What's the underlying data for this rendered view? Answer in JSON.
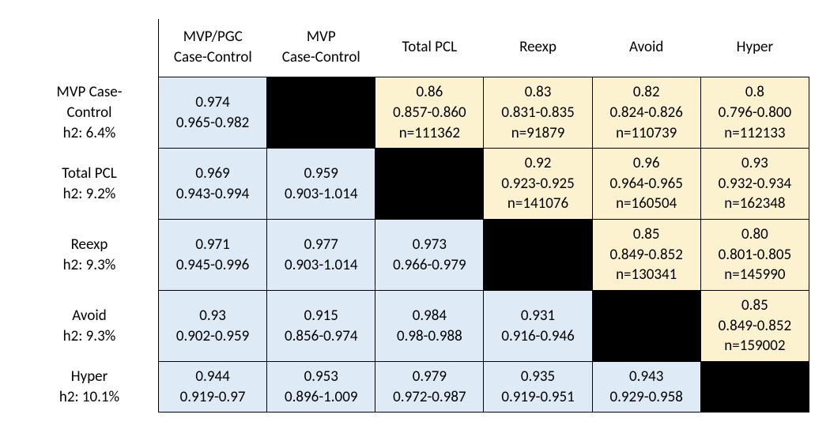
{
  "colors": {
    "lower_bg": "#deeaf6",
    "upper_bg": "#fdf2d0",
    "diag_bg": "#000000",
    "border": "#000000",
    "text": "#000000",
    "page_bg": "#ffffff"
  },
  "font": {
    "family": "Calibri",
    "size_pt": 14
  },
  "col_headers": [
    [
      "MVP/PGC",
      "Case-Control"
    ],
    [
      "MVP",
      "Case-Control"
    ],
    [
      "Total PCL"
    ],
    [
      "Reexp"
    ],
    [
      "Avoid"
    ],
    [
      "Hyper"
    ]
  ],
  "row_headers": [
    [
      "MVP Case-",
      "Control",
      "h2: 6.4%"
    ],
    [
      "Total PCL",
      "h2: 9.2%"
    ],
    [
      "Reexp",
      "h2: 9.3%"
    ],
    [
      "Avoid",
      "h2: 9.3%"
    ],
    [
      "Hyper",
      "h2: 10.1%"
    ]
  ],
  "cells": [
    [
      {
        "kind": "lower",
        "lines": [
          "0.974",
          "0.965-0.982"
        ]
      },
      {
        "kind": "diag"
      },
      {
        "kind": "upper",
        "lines": [
          "0.86",
          "0.857-0.860",
          "n=111362"
        ]
      },
      {
        "kind": "upper",
        "lines": [
          "0.83",
          "0.831-0.835",
          "n=91879"
        ]
      },
      {
        "kind": "upper",
        "lines": [
          "0.82",
          "0.824-0.826",
          "n=110739"
        ]
      },
      {
        "kind": "upper",
        "lines": [
          "0.8",
          "0.796-0.800",
          "n=112133"
        ]
      }
    ],
    [
      {
        "kind": "lower",
        "lines": [
          "0.969",
          "0.943-0.994"
        ]
      },
      {
        "kind": "lower",
        "lines": [
          "0.959",
          "0.903-1.014"
        ]
      },
      {
        "kind": "diag"
      },
      {
        "kind": "upper",
        "lines": [
          "0.92",
          "0.923-0.925",
          "n=141076"
        ]
      },
      {
        "kind": "upper",
        "lines": [
          "0.96",
          "0.964-0.965",
          "n=160504"
        ]
      },
      {
        "kind": "upper",
        "lines": [
          "0.93",
          "0.932-0.934",
          "n=162348"
        ]
      }
    ],
    [
      {
        "kind": "lower",
        "lines": [
          "0.971",
          "0.945-0.996"
        ]
      },
      {
        "kind": "lower",
        "lines": [
          "0.977",
          "0.903-1.014"
        ]
      },
      {
        "kind": "lower",
        "lines": [
          "0.973",
          "0.966-0.979"
        ]
      },
      {
        "kind": "diag"
      },
      {
        "kind": "upper",
        "lines": [
          "0.85",
          "0.849-0.852",
          "n=130341"
        ]
      },
      {
        "kind": "upper",
        "lines": [
          "0.80",
          "0.801-0.805",
          "n=145990"
        ]
      }
    ],
    [
      {
        "kind": "lower",
        "lines": [
          "0.93",
          "0.902-0.959"
        ]
      },
      {
        "kind": "lower",
        "lines": [
          "0.915",
          "0.856-0.974"
        ]
      },
      {
        "kind": "lower",
        "lines": [
          "0.984",
          "0.98-0.988"
        ]
      },
      {
        "kind": "lower",
        "lines": [
          "0.931",
          "0.916-0.946"
        ]
      },
      {
        "kind": "diag"
      },
      {
        "kind": "upper",
        "lines": [
          "0.85",
          "0.849-0.852",
          "n=159002"
        ]
      }
    ],
    [
      {
        "kind": "lower",
        "lines": [
          "0.944",
          "0.919-0.97"
        ]
      },
      {
        "kind": "lower",
        "lines": [
          "0.953",
          "0.896-1.009"
        ]
      },
      {
        "kind": "lower",
        "lines": [
          "0.979",
          "0.972-0.987"
        ]
      },
      {
        "kind": "lower",
        "lines": [
          "0.935",
          "0.919-0.951"
        ]
      },
      {
        "kind": "lower",
        "lines": [
          "0.943",
          "0.929-0.958"
        ]
      },
      {
        "kind": "diag"
      }
    ]
  ]
}
